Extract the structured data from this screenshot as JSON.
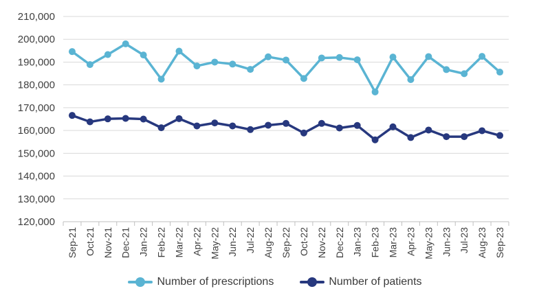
{
  "chart_data": {
    "type": "line",
    "ylim": [
      120000,
      210000
    ],
    "yticks": [
      "210,000",
      "200,000",
      "190,000",
      "180,000",
      "170,000",
      "160,000",
      "150,000",
      "140,000",
      "130,000",
      "120,000"
    ],
    "ytick_values": [
      210000,
      200000,
      190000,
      180000,
      170000,
      160000,
      150000,
      140000,
      130000,
      120000
    ],
    "categories": [
      "Sep-21",
      "Oct-21",
      "Nov-21",
      "Dec-21",
      "Jan-22",
      "Feb-22",
      "Mar-22",
      "Apr-22",
      "May-22",
      "Jun-22",
      "Jul-22",
      "Aug-22",
      "Sep-22",
      "Oct-22",
      "Nov-22",
      "Dec-22",
      "Jan-23",
      "Feb-23",
      "Mar-23",
      "Apr-23",
      "May-23",
      "Jun-23",
      "Jul-23",
      "Aug-23",
      "Sep-23"
    ],
    "series": [
      {
        "name": "Number of prescriptions",
        "color": "#5ab4d3",
        "values": [
          194600,
          188900,
          193300,
          198000,
          193100,
          182500,
          194800,
          188300,
          190000,
          189100,
          186800,
          192300,
          190900,
          182800,
          191800,
          192000,
          191000,
          176900,
          192200,
          182300,
          192400,
          186700,
          184900,
          192500,
          185600
        ]
      },
      {
        "name": "Number of patients",
        "color": "#27387e",
        "values": [
          166600,
          163800,
          165100,
          165300,
          165000,
          161200,
          165200,
          162000,
          163300,
          162000,
          160400,
          162300,
          163100,
          158900,
          163100,
          161100,
          162200,
          155900,
          161600,
          156900,
          160200,
          157300,
          157300,
          159900,
          157800
        ]
      }
    ],
    "grid": true,
    "legend_position": "bottom-center"
  }
}
